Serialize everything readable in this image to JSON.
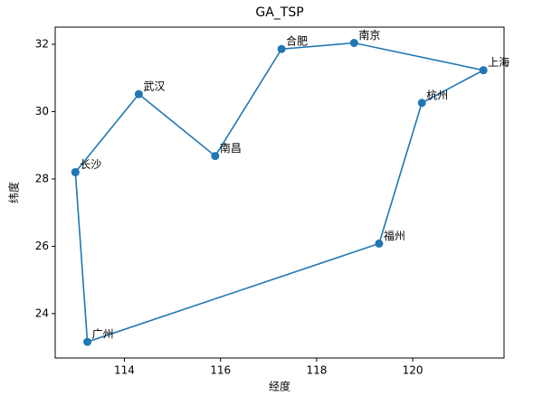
{
  "chart_data": {
    "type": "line",
    "title": "GA_TSP",
    "xlabel": "经度",
    "ylabel": "纬度",
    "x": [
      112.98,
      114.3,
      115.89,
      117.27,
      118.78,
      121.47,
      120.19,
      119.3,
      113.23,
      112.98
    ],
    "series": [
      {
        "color": "#1f77b4",
        "values": [
          28.2,
          30.52,
          28.68,
          31.86,
          32.04,
          31.23,
          30.26,
          26.08,
          23.16,
          28.2
        ],
        "labels": [
          "长沙",
          "武汉",
          "南昌",
          "合肥",
          "南京",
          "上海",
          "杭州",
          "福州",
          "广州",
          null
        ]
      }
    ],
    "xlim": [
      112.56,
      121.9
    ],
    "ylim": [
      22.68,
      32.51
    ],
    "xticks": [
      114,
      116,
      118,
      120
    ],
    "yticks": [
      24,
      26,
      28,
      30,
      32
    ],
    "grid": false
  }
}
